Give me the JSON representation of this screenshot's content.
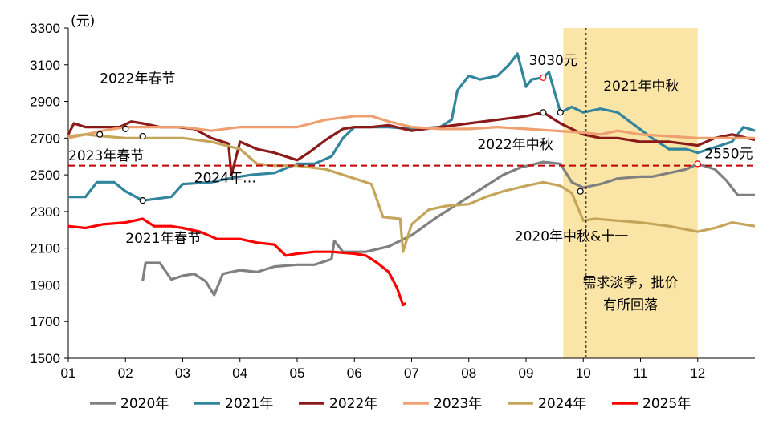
{
  "chart_data": {
    "type": "line",
    "unit_label": "(元)",
    "ylim": [
      1500,
      3300
    ],
    "yticks": [
      "3300",
      "3100",
      "2900",
      "2700",
      "2500",
      "2300",
      "2100",
      "1900",
      "1700",
      "1500"
    ],
    "xlim": [
      1,
      13
    ],
    "xticks": [
      "01",
      "02",
      "03",
      "04",
      "05",
      "06",
      "07",
      "08",
      "09",
      "10",
      "11",
      "12"
    ],
    "reference_line": {
      "value": 2550,
      "label": "2550元",
      "color": "#C00000"
    },
    "highlight_band": {
      "from": 9.65,
      "to": 12.0,
      "color": "#FBE5A6",
      "label_lines": [
        "需求淡季，批价",
        "有所回落"
      ]
    },
    "vline_x": 10.05,
    "series": [
      {
        "name": "2020年",
        "color": "#808080",
        "points": [
          [
            2.3,
            1920
          ],
          [
            2.35,
            2020
          ],
          [
            2.6,
            2020
          ],
          [
            2.8,
            1930
          ],
          [
            3.0,
            1950
          ],
          [
            3.2,
            1960
          ],
          [
            3.4,
            1920
          ],
          [
            3.55,
            1845
          ],
          [
            3.7,
            1960
          ],
          [
            4.0,
            1980
          ],
          [
            4.3,
            1970
          ],
          [
            4.6,
            2000
          ],
          [
            5.0,
            2010
          ],
          [
            5.3,
            2010
          ],
          [
            5.6,
            2040
          ],
          [
            5.65,
            2140
          ],
          [
            5.8,
            2080
          ],
          [
            6.2,
            2080
          ],
          [
            6.6,
            2110
          ],
          [
            7.0,
            2170
          ],
          [
            7.4,
            2260
          ],
          [
            7.8,
            2340
          ],
          [
            8.2,
            2420
          ],
          [
            8.6,
            2500
          ],
          [
            8.9,
            2540
          ],
          [
            9.3,
            2570
          ],
          [
            9.6,
            2560
          ],
          [
            9.8,
            2460
          ],
          [
            10.0,
            2430
          ],
          [
            10.3,
            2450
          ],
          [
            10.6,
            2480
          ],
          [
            11.0,
            2490
          ],
          [
            11.2,
            2490
          ],
          [
            11.5,
            2510
          ],
          [
            11.8,
            2530
          ],
          [
            12.0,
            2560
          ],
          [
            12.3,
            2530
          ],
          [
            12.5,
            2470
          ],
          [
            12.7,
            2390
          ],
          [
            13.0,
            2390
          ]
        ]
      },
      {
        "name": "2021年",
        "color": "#31859C",
        "points": [
          [
            1.0,
            2380
          ],
          [
            1.3,
            2380
          ],
          [
            1.5,
            2460
          ],
          [
            1.8,
            2460
          ],
          [
            2.0,
            2410
          ],
          [
            2.3,
            2360
          ],
          [
            2.8,
            2380
          ],
          [
            3.0,
            2450
          ],
          [
            3.5,
            2460
          ],
          [
            3.8,
            2480
          ],
          [
            4.2,
            2500
          ],
          [
            4.6,
            2510
          ],
          [
            5.0,
            2560
          ],
          [
            5.3,
            2560
          ],
          [
            5.6,
            2600
          ],
          [
            5.8,
            2700
          ],
          [
            6.0,
            2760
          ],
          [
            6.3,
            2760
          ],
          [
            6.6,
            2760
          ],
          [
            7.0,
            2750
          ],
          [
            7.5,
            2760
          ],
          [
            7.7,
            2800
          ],
          [
            7.8,
            2960
          ],
          [
            8.0,
            3040
          ],
          [
            8.2,
            3020
          ],
          [
            8.5,
            3040
          ],
          [
            8.7,
            3100
          ],
          [
            8.85,
            3160
          ],
          [
            9.0,
            2980
          ],
          [
            9.1,
            3020
          ],
          [
            9.3,
            3030
          ],
          [
            9.4,
            3060
          ],
          [
            9.6,
            2840
          ],
          [
            9.8,
            2870
          ],
          [
            10.0,
            2840
          ],
          [
            10.3,
            2860
          ],
          [
            10.6,
            2840
          ],
          [
            10.9,
            2770
          ],
          [
            11.2,
            2700
          ],
          [
            11.5,
            2640
          ],
          [
            11.8,
            2640
          ],
          [
            12.0,
            2620
          ],
          [
            12.3,
            2650
          ],
          [
            12.6,
            2680
          ],
          [
            12.8,
            2760
          ],
          [
            13.0,
            2740
          ]
        ]
      },
      {
        "name": "2022年",
        "color": "#8B1A1A",
        "points": [
          [
            1.0,
            2720
          ],
          [
            1.1,
            2780
          ],
          [
            1.3,
            2760
          ],
          [
            1.6,
            2760
          ],
          [
            1.9,
            2760
          ],
          [
            2.1,
            2790
          ],
          [
            2.3,
            2780
          ],
          [
            2.6,
            2760
          ],
          [
            2.9,
            2760
          ],
          [
            3.2,
            2750
          ],
          [
            3.5,
            2700
          ],
          [
            3.8,
            2670
          ],
          [
            3.85,
            2500
          ],
          [
            4.0,
            2680
          ],
          [
            4.3,
            2640
          ],
          [
            4.6,
            2620
          ],
          [
            5.0,
            2580
          ],
          [
            5.2,
            2620
          ],
          [
            5.5,
            2690
          ],
          [
            5.8,
            2750
          ],
          [
            6.0,
            2760
          ],
          [
            6.3,
            2760
          ],
          [
            6.6,
            2770
          ],
          [
            7.0,
            2740
          ],
          [
            7.5,
            2760
          ],
          [
            8.0,
            2780
          ],
          [
            8.5,
            2800
          ],
          [
            9.0,
            2820
          ],
          [
            9.3,
            2840
          ],
          [
            9.6,
            2780
          ],
          [
            9.8,
            2750
          ],
          [
            10.0,
            2720
          ],
          [
            10.3,
            2700
          ],
          [
            10.6,
            2700
          ],
          [
            11.0,
            2680
          ],
          [
            11.5,
            2680
          ],
          [
            12.0,
            2660
          ],
          [
            12.3,
            2700
          ],
          [
            12.6,
            2720
          ],
          [
            13.0,
            2690
          ]
        ]
      },
      {
        "name": "2023年",
        "color": "#F0A070",
        "points": [
          [
            1.0,
            2700
          ],
          [
            1.3,
            2720
          ],
          [
            1.6,
            2740
          ],
          [
            2.0,
            2760
          ],
          [
            2.5,
            2760
          ],
          [
            3.0,
            2760
          ],
          [
            3.5,
            2740
          ],
          [
            4.0,
            2760
          ],
          [
            4.5,
            2760
          ],
          [
            5.0,
            2760
          ],
          [
            5.5,
            2800
          ],
          [
            6.0,
            2820
          ],
          [
            6.3,
            2820
          ],
          [
            6.6,
            2790
          ],
          [
            7.0,
            2760
          ],
          [
            7.5,
            2750
          ],
          [
            8.0,
            2750
          ],
          [
            8.5,
            2760
          ],
          [
            9.0,
            2750
          ],
          [
            9.5,
            2740
          ],
          [
            10.0,
            2730
          ],
          [
            10.3,
            2720
          ],
          [
            10.6,
            2740
          ],
          [
            11.0,
            2720
          ],
          [
            11.5,
            2710
          ],
          [
            12.0,
            2700
          ],
          [
            12.5,
            2700
          ],
          [
            13.0,
            2700
          ]
        ]
      },
      {
        "name": "2024年",
        "color": "#C5A55A",
        "points": [
          [
            1.0,
            2710
          ],
          [
            1.3,
            2720
          ],
          [
            1.6,
            2710
          ],
          [
            2.0,
            2700
          ],
          [
            2.5,
            2700
          ],
          [
            3.0,
            2700
          ],
          [
            3.5,
            2680
          ],
          [
            4.0,
            2640
          ],
          [
            4.3,
            2560
          ],
          [
            4.6,
            2550
          ],
          [
            5.0,
            2550
          ],
          [
            5.5,
            2530
          ],
          [
            6.0,
            2480
          ],
          [
            6.3,
            2450
          ],
          [
            6.5,
            2270
          ],
          [
            6.8,
            2260
          ],
          [
            6.85,
            2080
          ],
          [
            7.0,
            2230
          ],
          [
            7.3,
            2310
          ],
          [
            7.6,
            2330
          ],
          [
            8.0,
            2340
          ],
          [
            8.3,
            2380
          ],
          [
            8.6,
            2410
          ],
          [
            9.0,
            2440
          ],
          [
            9.3,
            2460
          ],
          [
            9.6,
            2440
          ],
          [
            9.8,
            2400
          ],
          [
            10.0,
            2250
          ],
          [
            10.2,
            2260
          ],
          [
            10.6,
            2250
          ],
          [
            11.0,
            2240
          ],
          [
            11.5,
            2220
          ],
          [
            12.0,
            2190
          ],
          [
            12.3,
            2210
          ],
          [
            12.6,
            2240
          ],
          [
            13.0,
            2220
          ]
        ]
      },
      {
        "name": "2025年",
        "color": "#FF0000",
        "points": [
          [
            1.0,
            2220
          ],
          [
            1.3,
            2210
          ],
          [
            1.6,
            2230
          ],
          [
            2.0,
            2240
          ],
          [
            2.3,
            2260
          ],
          [
            2.5,
            2220
          ],
          [
            2.8,
            2220
          ],
          [
            3.0,
            2210
          ],
          [
            3.3,
            2190
          ],
          [
            3.6,
            2150
          ],
          [
            4.0,
            2150
          ],
          [
            4.3,
            2130
          ],
          [
            4.6,
            2120
          ],
          [
            4.8,
            2060
          ],
          [
            5.0,
            2070
          ],
          [
            5.3,
            2080
          ],
          [
            5.6,
            2080
          ],
          [
            6.0,
            2070
          ],
          [
            6.2,
            2060
          ],
          [
            6.4,
            2020
          ],
          [
            6.6,
            1970
          ],
          [
            6.75,
            1880
          ],
          [
            6.85,
            1790
          ],
          [
            6.9,
            1800
          ]
        ]
      }
    ],
    "annotations": [
      {
        "text": "2022年春节",
        "tx": 1.55,
        "ty": 3000
      },
      {
        "text": "2023年春节",
        "tx": 1.0,
        "ty": 2580
      },
      {
        "text": "2024年…",
        "tx": 3.2,
        "ty": 2460
      },
      {
        "text": "2021年春节",
        "tx": 2.0,
        "ty": 2130
      },
      {
        "text": "3030元",
        "tx": 9.05,
        "ty": 3100
      },
      {
        "text": "2021年中秋",
        "tx": 10.35,
        "ty": 2960
      },
      {
        "text": "2022年中秋",
        "tx": 8.15,
        "ty": 2640
      },
      {
        "text": "2550元",
        "tx": 12.12,
        "ty": 2590
      },
      {
        "text": "2020年中秋&十一",
        "tx": 8.8,
        "ty": 2140
      }
    ],
    "legend": [
      "2020年",
      "2021年",
      "2022年",
      "2023年",
      "2024年",
      "2025年"
    ]
  }
}
